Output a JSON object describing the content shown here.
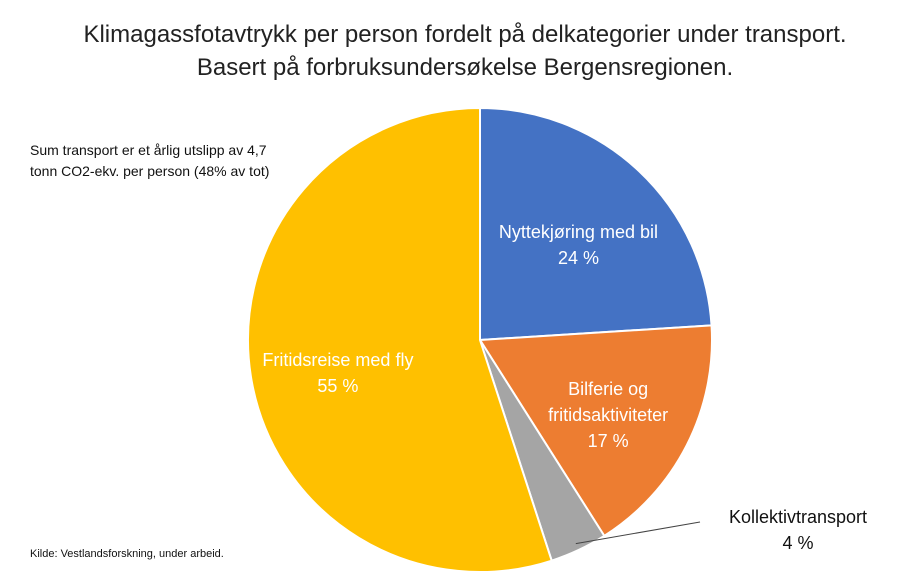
{
  "chart_data": {
    "type": "pie",
    "title": "Klimagassfotavtrykk per person fordelt på delkategorier under transport. Basert på forbruksundersøkelse Bergensregionen.",
    "annotation": "Sum transport er et årlig utslipp av 4,7 tonn CO2-ekv. per person (48% av tot)",
    "source": "Kilde: Vestlandsforskning, under arbeid.",
    "categories": [
      "Nyttekjøring med bil",
      "Bilferie og fritidsaktiviteter",
      "Kollektivtransport",
      "Fritidsreise med fly"
    ],
    "values": [
      24,
      17,
      4,
      55
    ],
    "value_labels": [
      "24 %",
      "17 %",
      "4 %",
      "55 %"
    ],
    "colors": [
      "#4472c4",
      "#ed7d31",
      "#a5a5a5",
      "#ffc000"
    ]
  }
}
